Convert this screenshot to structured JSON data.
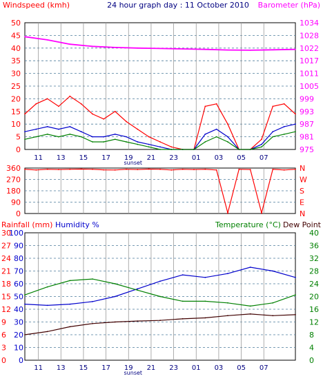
{
  "chart_data": [
    {
      "type": "line",
      "title": "24 hour graph day : 11 October 2010",
      "left_axis_label": "Windspeed (kmh)",
      "right_axis_label": "Barometer (hPa)",
      "left_ticks": [
        "0",
        "5",
        "10",
        "15",
        "20",
        "25",
        "30",
        "35",
        "40",
        "45",
        "50"
      ],
      "right_ticks": [
        "975",
        "981",
        "987",
        "993",
        "999",
        "1005",
        "1011",
        "1017",
        "1022",
        "1028",
        "1034"
      ],
      "x_ticks": [
        "11",
        "13",
        "15",
        "17",
        "19",
        "21",
        "23",
        "01",
        "03",
        "05",
        "07"
      ],
      "x_marker": "sunset",
      "ylim_left": [
        0,
        50
      ],
      "ylim_right": [
        975,
        1034
      ],
      "grid": true,
      "series": [
        {
          "name": "Barometer (hPa)",
          "axis": "right",
          "color": "#ff00ff",
          "x": [
            0,
            2,
            4,
            6,
            8,
            10,
            12,
            14,
            16,
            18,
            20,
            22,
            24
          ],
          "y": [
            1027.5,
            1026,
            1024,
            1023,
            1022.5,
            1022.2,
            1022.0,
            1021.8,
            1021.6,
            1021.3,
            1021.2,
            1021.4,
            1021.6
          ]
        },
        {
          "name": "Gust (kmh)",
          "axis": "left",
          "color": "#ff0000",
          "x": [
            0,
            1,
            2,
            3,
            4,
            5,
            6,
            7,
            8,
            9,
            10,
            11,
            12,
            13,
            14,
            15,
            16,
            17,
            18,
            19,
            20,
            21,
            22,
            23,
            24
          ],
          "y": [
            14,
            18,
            20,
            17,
            21,
            18,
            14,
            12,
            15,
            11,
            8,
            5,
            3,
            1,
            0,
            0,
            17,
            18,
            10,
            0,
            0,
            4,
            17,
            18,
            14
          ]
        },
        {
          "name": "Average (kmh)",
          "axis": "left",
          "color": "#0000cc",
          "x": [
            0,
            1,
            2,
            3,
            4,
            5,
            6,
            7,
            8,
            9,
            10,
            11,
            12,
            13,
            14,
            15,
            16,
            17,
            18,
            19,
            20,
            21,
            22,
            23,
            24
          ],
          "y": [
            7,
            8,
            9,
            8,
            9,
            7,
            5,
            5,
            6,
            5,
            3,
            2,
            1,
            0,
            0,
            0,
            6,
            8,
            5,
            0,
            0,
            2,
            7,
            9,
            10
          ]
        },
        {
          "name": "Wind (kmh)",
          "axis": "left",
          "color": "#008000",
          "x": [
            0,
            1,
            2,
            3,
            4,
            5,
            6,
            7,
            8,
            9,
            10,
            11,
            12,
            13,
            14,
            15,
            16,
            17,
            18,
            19,
            20,
            21,
            22,
            23,
            24
          ],
          "y": [
            4,
            5,
            6,
            5,
            6,
            5,
            3,
            3,
            4,
            3,
            2,
            1,
            0,
            0,
            0,
            0,
            3,
            5,
            3,
            0,
            0,
            1,
            5,
            6,
            7
          ]
        }
      ]
    },
    {
      "type": "scatter",
      "left_ticks": [
        "0",
        "90",
        "180",
        "270",
        "360"
      ],
      "right_ticks": [
        "N",
        "E",
        "S",
        "W",
        "N"
      ],
      "ylim": [
        0,
        360
      ],
      "series": [
        {
          "name": "Wind direction",
          "color": "#ff0000",
          "x": [
            0,
            1,
            2,
            3,
            4,
            5,
            6,
            7,
            8,
            9,
            10,
            11,
            12,
            13,
            14,
            15,
            16,
            17,
            18,
            19,
            20,
            21,
            22,
            23,
            24
          ],
          "y": [
            350,
            345,
            350,
            348,
            350,
            352,
            350,
            346,
            345,
            350,
            348,
            352,
            350,
            345,
            350,
            348,
            350,
            345,
            5,
            350,
            348,
            5,
            350,
            345,
            350
          ]
        }
      ]
    },
    {
      "type": "line",
      "rain_label": "Rainfall (mm)",
      "humidity_label": "Humidity %",
      "temp_label": "Temperature (°C)",
      "dew_label": "Dew Point",
      "rain_ticks": [
        "0",
        "3",
        "6",
        "9",
        "12",
        "15",
        "18",
        "21",
        "24",
        "27",
        "30"
      ],
      "humidity_ticks": [
        "0",
        "10",
        "20",
        "30",
        "40",
        "50",
        "60",
        "70",
        "80",
        "90",
        "100"
      ],
      "temp_ticks": [
        "0",
        "4",
        "8",
        "12",
        "16",
        "20",
        "24",
        "28",
        "32",
        "36",
        "40"
      ],
      "x_ticks": [
        "11",
        "13",
        "15",
        "17",
        "19",
        "21",
        "23",
        "01",
        "03",
        "05",
        "07"
      ],
      "x_marker": "sunset",
      "grid": true,
      "series": [
        {
          "name": "Humidity %",
          "axis": "humidity",
          "color": "#0000cc",
          "x": [
            0,
            2,
            4,
            6,
            8,
            10,
            12,
            14,
            16,
            18,
            20,
            22,
            24
          ],
          "y": [
            44,
            43,
            44,
            46,
            50,
            56,
            62,
            67,
            65,
            68,
            73,
            70,
            65
          ]
        },
        {
          "name": "Temperature (°C)",
          "axis": "temp",
          "color": "#008000",
          "x": [
            0,
            2,
            4,
            6,
            8,
            10,
            12,
            14,
            16,
            18,
            20,
            22,
            24
          ],
          "y": [
            20.5,
            23,
            25,
            25.5,
            24,
            22,
            20,
            18.5,
            18.5,
            18,
            17,
            18,
            20.5
          ]
        },
        {
          "name": "Dew Point",
          "axis": "temp",
          "color": "#400000",
          "x": [
            0,
            2,
            4,
            6,
            8,
            10,
            12,
            14,
            16,
            18,
            20,
            22,
            24
          ],
          "y": [
            8,
            9,
            10.5,
            11.5,
            12,
            12.3,
            12.5,
            13,
            13.3,
            14,
            14.5,
            14,
            14.3
          ]
        }
      ]
    }
  ]
}
